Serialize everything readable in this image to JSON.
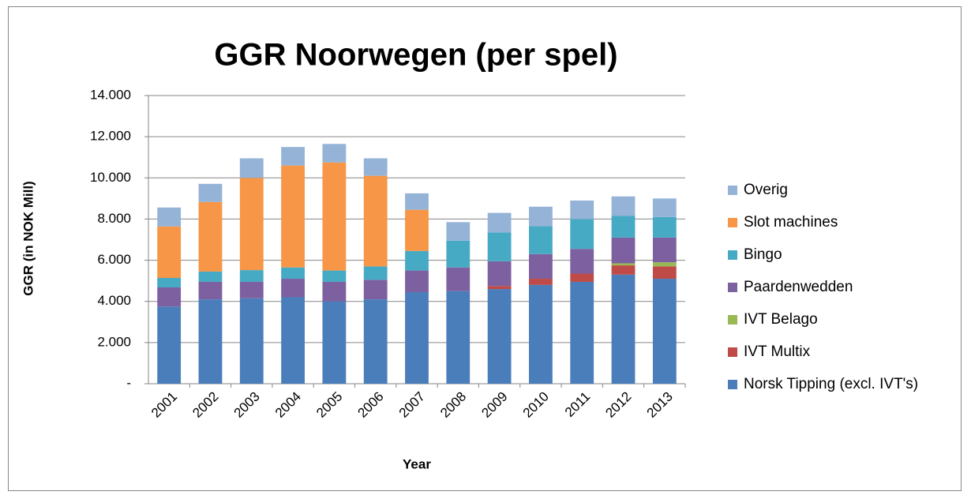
{
  "chart_data": {
    "type": "stacked_bar",
    "title": "GGR Noorwegen (per spel)",
    "x_label": "Year",
    "y_label": "GGR (in NOK Mill)",
    "categories": [
      "2001",
      "2002",
      "2003",
      "2004",
      "2005",
      "2006",
      "2007",
      "2008",
      "2009",
      "2010",
      "2011",
      "2012",
      "2013"
    ],
    "series": [
      {
        "name": "Norsk Tipping (excl. IVT's)",
        "color": "#4a7ebb",
        "values": [
          3750,
          4100,
          4150,
          4200,
          4000,
          4100,
          4450,
          4500,
          4600,
          4800,
          4950,
          5300,
          5100
        ]
      },
      {
        "name": "IVT Multix",
        "color": "#be4b48",
        "values": [
          0,
          0,
          0,
          0,
          0,
          0,
          0,
          0,
          150,
          300,
          400,
          450,
          600
        ]
      },
      {
        "name": "IVT Belago",
        "color": "#98b954",
        "values": [
          0,
          0,
          0,
          0,
          0,
          0,
          0,
          0,
          0,
          0,
          0,
          100,
          200
        ]
      },
      {
        "name": "Paardenwedden",
        "color": "#7d60a0",
        "values": [
          930,
          850,
          800,
          900,
          950,
          950,
          1050,
          1150,
          1200,
          1200,
          1200,
          1250,
          1200
        ]
      },
      {
        "name": "Bingo",
        "color": "#46aac5",
        "values": [
          460,
          500,
          570,
          550,
          550,
          650,
          950,
          1300,
          1400,
          1350,
          1450,
          1050,
          1000
        ]
      },
      {
        "name": "Slot machines",
        "color": "#f79646",
        "values": [
          2500,
          3380,
          4480,
          4950,
          5250,
          4400,
          2000,
          0,
          0,
          0,
          0,
          0,
          0
        ]
      },
      {
        "name": "Overig",
        "color": "#95b3d7",
        "values": [
          920,
          880,
          950,
          900,
          900,
          850,
          800,
          900,
          950,
          950,
          900,
          950,
          900
        ]
      }
    ],
    "ylim": [
      0,
      14000
    ],
    "yticks": [
      {
        "value": 0,
        "label": "-"
      },
      {
        "value": 2000,
        "label": "2.000"
      },
      {
        "value": 4000,
        "label": "4.000"
      },
      {
        "value": 6000,
        "label": "6.000"
      },
      {
        "value": 8000,
        "label": "8.000"
      },
      {
        "value": 10000,
        "label": "10.000"
      },
      {
        "value": 12000,
        "label": "12.000"
      },
      {
        "value": 14000,
        "label": "14.000"
      }
    ],
    "grid": true,
    "legend": "right"
  }
}
